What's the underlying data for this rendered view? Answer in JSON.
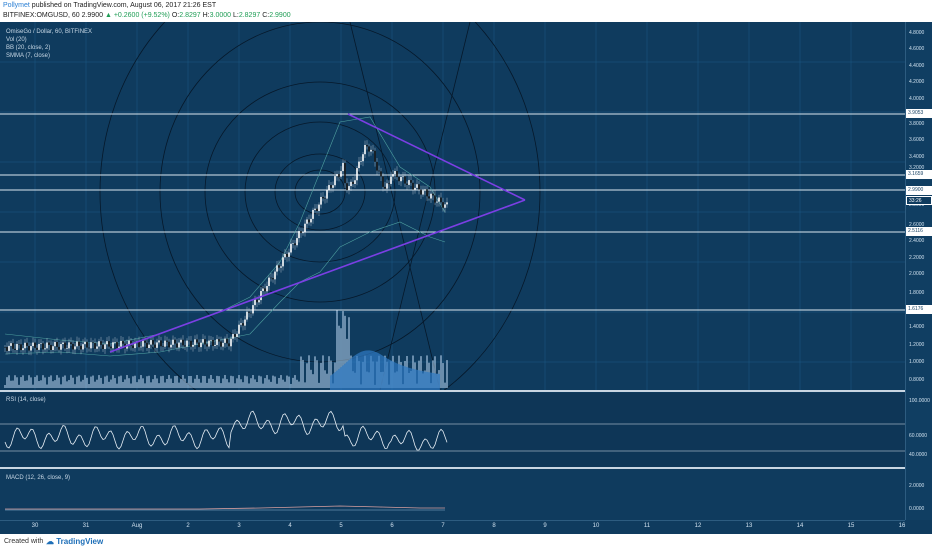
{
  "header": {
    "author": "Pollymet",
    "published_text": "published on TradingView.com, August 06, 2017 21:26 EST",
    "symbol": "BITFINEX:OMGUSD, 60",
    "last": "2.9900",
    "change": "+0.2600 (+9.52%)",
    "o_label": "O:",
    "o_value": "2.8297",
    "h_label": "H:",
    "h_value": "3.0000",
    "l_label": "L:",
    "l_value": "2.8297",
    "c_label": "C:",
    "c_value": "2.9900"
  },
  "legend": {
    "title": "OmiseGo / Dollar, 60, BITFINEX",
    "vol": "Vol (20)",
    "bb": "BB (20, close, 2)",
    "smma": "SMMA (7, close)",
    "rsi": "RSI (14, close)",
    "macd": "MACD (12, 26, close, 9)"
  },
  "price_ticks": [
    "4.8000",
    "4.6000",
    "4.4000",
    "4.2000",
    "4.0000",
    "3.8000",
    "3.6000",
    "3.4000",
    "3.2000",
    "3.0000",
    "2.8000",
    "2.6000",
    "2.4000",
    "2.2000",
    "2.0000",
    "1.8000",
    "1.6000",
    "1.4000",
    "1.2000",
    "1.0000",
    "0.8000"
  ],
  "price_labels": [
    "3.9053",
    "3.1659",
    "2.9900",
    "33:26",
    "2.5116",
    "1.6176"
  ],
  "rsi_ticks": [
    "100.0000",
    "60.0000",
    "40.0000"
  ],
  "macd_ticks": [
    "2.0000",
    "0.0000"
  ],
  "time_ticks": [
    "30",
    "31",
    "Aug",
    "2",
    "3",
    "4",
    "5",
    "6",
    "7",
    "8",
    "9",
    "10",
    "11",
    "12",
    "13",
    "14",
    "15",
    "16"
  ],
  "footer": {
    "created": "Created with",
    "brand": "TradingView"
  },
  "colors": {
    "background": "#0f3b5e",
    "triangle": "#7b3fe4",
    "hlines": "#dbe7f0",
    "candle_up": "#ffffff",
    "candle_down": "#1a1a1a",
    "volume": "#a9c7e0",
    "rsi_line": "#e6eef5"
  }
}
